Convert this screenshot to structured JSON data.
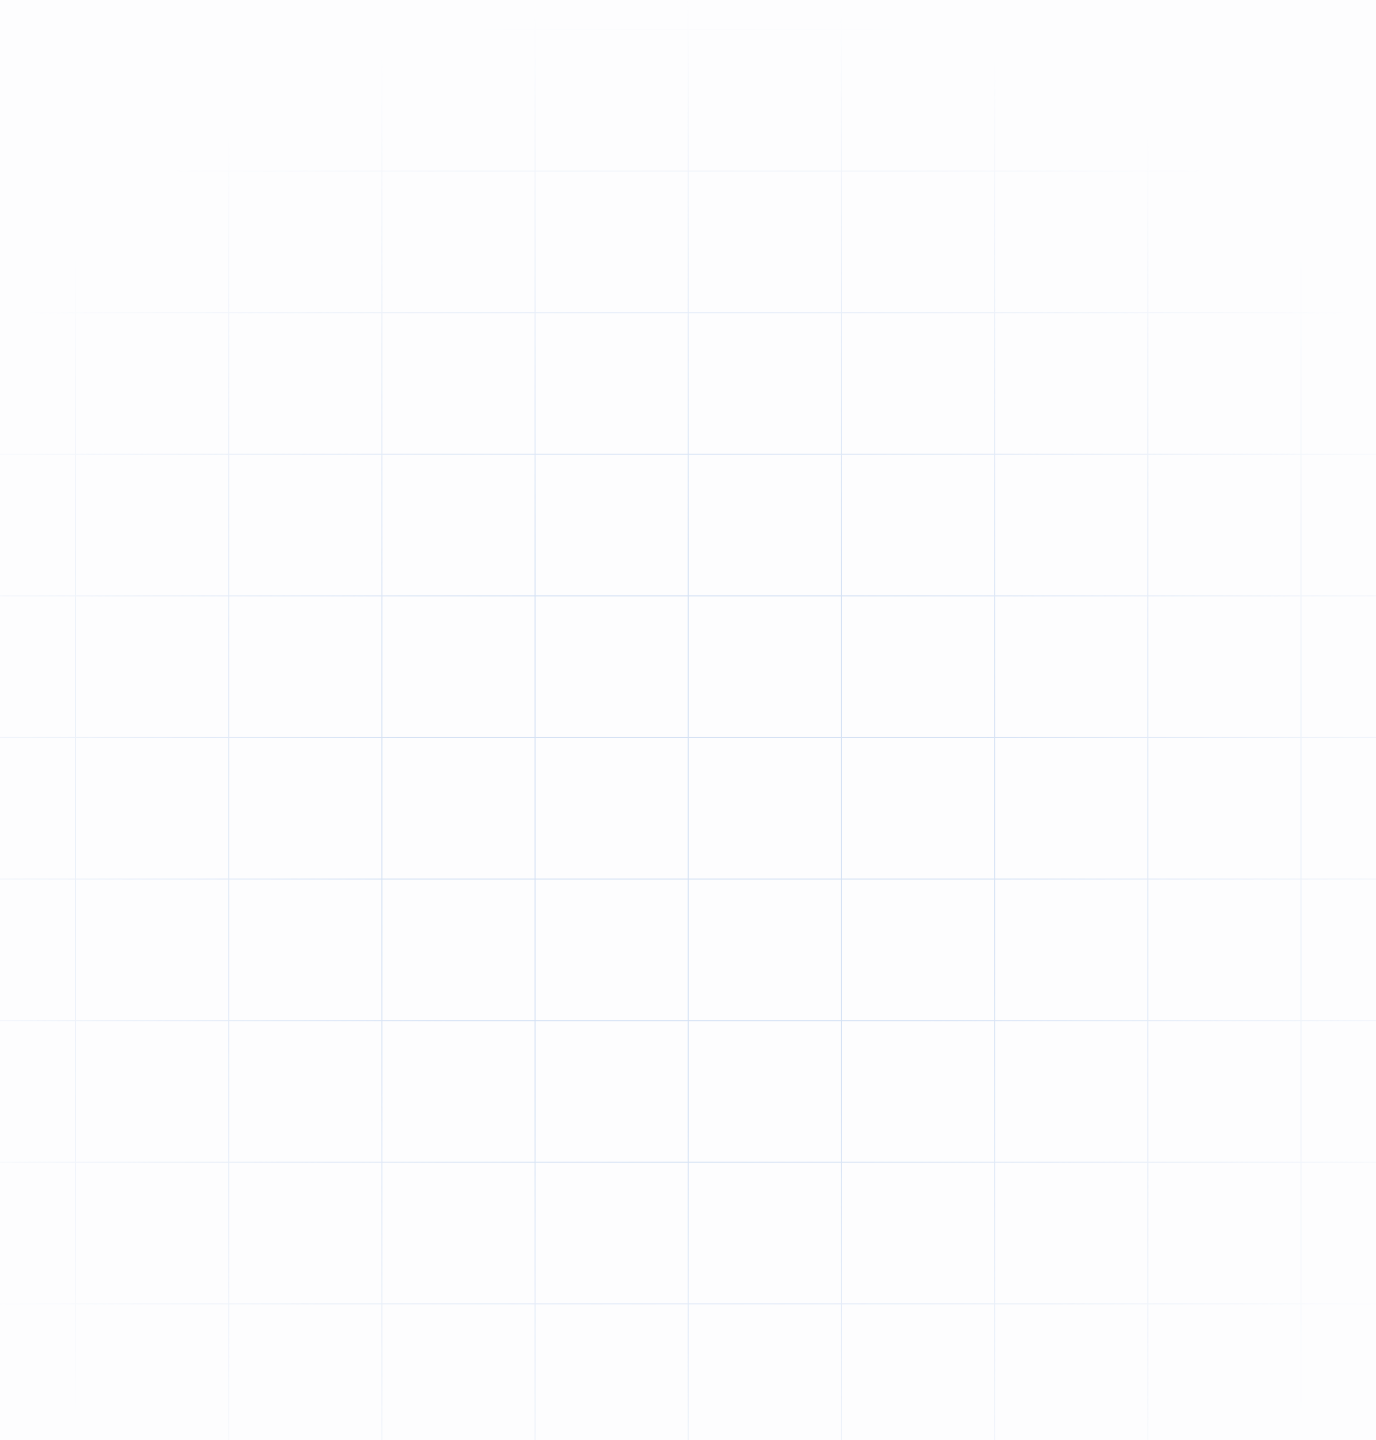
{
  "background": {
    "pattern": "grid",
    "line_color": "#d4e1f4",
    "base_color": "#fdfdfe"
  }
}
